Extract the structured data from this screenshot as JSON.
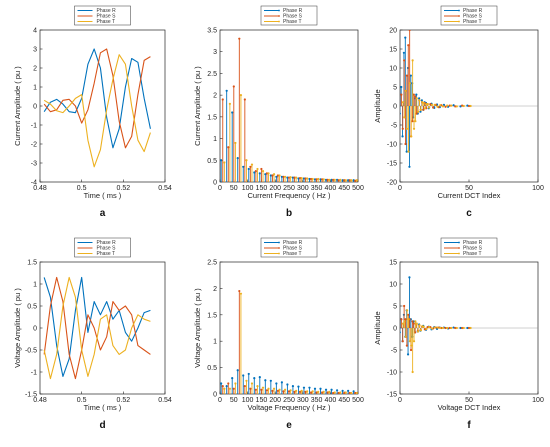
{
  "colors": {
    "R": "#0072BD",
    "S": "#D95319",
    "T": "#EDB120"
  },
  "legend": [
    "Phase R",
    "Phase S",
    "Phase T"
  ],
  "chart_data": [
    {
      "id": "a",
      "letter": "a",
      "type": "line",
      "xlabel": "Time ( ms )",
      "ylabel": "Current Amplitude ( pu )",
      "xlim": [
        0.48,
        0.54
      ],
      "ylim": [
        -4,
        4
      ],
      "xticks": [
        0.48,
        0.5,
        0.52,
        0.54
      ],
      "xticklabels": [
        "0.48",
        "0.5",
        "0.52",
        "0.54"
      ],
      "yticks": [
        -4,
        -3,
        -2,
        -1,
        0,
        1,
        2,
        3,
        4
      ],
      "yticklabels": [
        "-4",
        "-3",
        "-2",
        "-1",
        "0",
        "1",
        "2",
        "3",
        "4"
      ],
      "x": [
        0.482,
        0.485,
        0.488,
        0.491,
        0.494,
        0.497,
        0.5,
        0.503,
        0.506,
        0.509,
        0.512,
        0.515,
        0.518,
        0.521,
        0.524,
        0.527,
        0.53,
        0.533
      ],
      "series": [
        {
          "name": "Phase R",
          "values": [
            -0.3,
            0.2,
            0.35,
            0.1,
            -0.3,
            -0.35,
            0.4,
            2.2,
            3.0,
            2.0,
            -0.6,
            -2.2,
            -1.2,
            1.0,
            2.5,
            2.3,
            0.4,
            -1.2
          ]
        },
        {
          "name": "Phase S",
          "values": [
            0.1,
            -0.3,
            -0.2,
            0.3,
            0.35,
            0.0,
            -0.9,
            -0.2,
            1.2,
            2.8,
            3.0,
            1.6,
            -0.8,
            -2.2,
            -1.6,
            0.6,
            2.4,
            2.6
          ]
        },
        {
          "name": "Phase T",
          "values": [
            0.3,
            0.1,
            -0.25,
            -0.35,
            0.0,
            0.4,
            0.6,
            -1.8,
            -3.2,
            -2.3,
            -0.2,
            1.4,
            2.7,
            2.2,
            0.0,
            -1.8,
            -2.4,
            -1.4
          ]
        }
      ]
    },
    {
      "id": "b",
      "letter": "b",
      "type": "stem",
      "xlabel": "Current Frequency ( Hz )",
      "ylabel": "Current Amplitude ( pu )",
      "xlim": [
        0,
        500
      ],
      "ylim": [
        0,
        3.5
      ],
      "xticks": [
        0,
        50,
        100,
        150,
        200,
        250,
        300,
        350,
        400,
        450,
        500
      ],
      "xticklabels": [
        "0",
        "50",
        "100",
        "150",
        "200",
        "250",
        "300",
        "350",
        "400",
        "450",
        "500"
      ],
      "yticks": [
        0,
        0.5,
        1,
        1.5,
        2,
        2.5,
        3,
        3.5
      ],
      "yticklabels": [
        "0",
        "0.5",
        "1",
        "1.5",
        "2",
        "2.5",
        "3",
        "3.5"
      ],
      "x": [
        10,
        30,
        50,
        70,
        90,
        110,
        130,
        150,
        170,
        190,
        210,
        230,
        250,
        270,
        290,
        310,
        330,
        350,
        370,
        390,
        410,
        430,
        450,
        470,
        490
      ],
      "series": [
        {
          "name": "Phase R",
          "values": [
            0.5,
            2.1,
            1.6,
            0.55,
            0.35,
            0.3,
            0.22,
            0.2,
            0.18,
            0.15,
            0.12,
            0.12,
            0.1,
            0.1,
            0.08,
            0.08,
            0.07,
            0.06,
            0.06,
            0.05,
            0.05,
            0.05,
            0.04,
            0.04,
            0.04
          ]
        },
        {
          "name": "Phase S",
          "values": [
            1.9,
            0.8,
            2.2,
            3.3,
            1.9,
            0.35,
            0.25,
            0.3,
            0.2,
            0.15,
            0.15,
            0.12,
            0.1,
            0.1,
            0.09,
            0.08,
            0.07,
            0.06,
            0.06,
            0.05,
            0.05,
            0.04,
            0.04,
            0.04,
            0.03
          ]
        },
        {
          "name": "Phase T",
          "values": [
            0.45,
            1.8,
            0.9,
            2.0,
            0.5,
            0.4,
            0.3,
            0.25,
            0.2,
            0.18,
            0.15,
            0.12,
            0.11,
            0.1,
            0.09,
            0.08,
            0.07,
            0.07,
            0.06,
            0.05,
            0.05,
            0.05,
            0.04,
            0.04,
            0.04
          ]
        }
      ]
    },
    {
      "id": "c",
      "letter": "c",
      "type": "stem",
      "xlabel": "Current DCT Index",
      "ylabel": "Amplitude",
      "xlim": [
        0,
        100
      ],
      "ylim": [
        -20,
        20
      ],
      "xticks": [
        0,
        50,
        100
      ],
      "xticklabels": [
        "0",
        "50",
        "100"
      ],
      "yticks": [
        -20,
        -15,
        -10,
        -5,
        0,
        5,
        10,
        15,
        20
      ],
      "yticklabels": [
        "-20",
        "-15",
        "-10",
        "-5",
        "0",
        "5",
        "10",
        "15",
        "20"
      ],
      "x": [
        1,
        2,
        3,
        4,
        5,
        6,
        7,
        8,
        9,
        10,
        11,
        12,
        13,
        14,
        15,
        16,
        17,
        18,
        19,
        20,
        22,
        24,
        26,
        28,
        30,
        33,
        36,
        40,
        45,
        50
      ],
      "series": [
        {
          "name": "Phase R",
          "values": [
            -2,
            5,
            -8,
            14,
            18,
            -12,
            10,
            -16,
            8,
            6,
            -3,
            2,
            3,
            -2,
            2,
            -1.5,
            1.5,
            -1,
            1,
            0.8,
            -0.6,
            0.6,
            -0.5,
            0.4,
            -0.3,
            0.3,
            -0.2,
            0.2,
            -0.1,
            0.1
          ]
        },
        {
          "name": "Phase S",
          "values": [
            3,
            -6,
            12,
            -10,
            8,
            16,
            20,
            -8,
            -4,
            3,
            2.5,
            -2,
            -1.5,
            1.5,
            -1,
            1,
            -1,
            0.8,
            -0.6,
            0.5,
            0.5,
            -0.4,
            0.3,
            -0.3,
            0.2,
            -0.2,
            0.1,
            -0.1,
            0.1,
            0
          ]
        },
        {
          "name": "Phase T",
          "values": [
            1,
            -3,
            4,
            -6,
            -12,
            6,
            -8,
            12,
            -6,
            -4,
            2,
            -1.5,
            1.5,
            -1,
            1,
            0.8,
            -0.6,
            0.5,
            0.5,
            -0.4,
            0.3,
            0.3,
            -0.2,
            0.2,
            -0.1,
            0.1,
            0.1,
            -0.1,
            0,
            0
          ]
        }
      ]
    },
    {
      "id": "d",
      "letter": "d",
      "type": "line",
      "xlabel": "Time ( ms )",
      "ylabel": "Voltage Amplitude ( pu )",
      "xlim": [
        0.48,
        0.54
      ],
      "ylim": [
        -1.5,
        1.5
      ],
      "xticks": [
        0.48,
        0.5,
        0.52,
        0.54
      ],
      "xticklabels": [
        "0.48",
        "0.5",
        "0.52",
        "0.54"
      ],
      "yticks": [
        -1.5,
        -1,
        -0.5,
        0,
        0.5,
        1,
        1.5
      ],
      "yticklabels": [
        "-1.5",
        "-1",
        "-0.5",
        "0",
        "0.5",
        "1",
        "1.5"
      ],
      "x": [
        0.482,
        0.485,
        0.488,
        0.491,
        0.494,
        0.497,
        0.5,
        0.503,
        0.506,
        0.509,
        0.512,
        0.515,
        0.518,
        0.521,
        0.524,
        0.527,
        0.53,
        0.533
      ],
      "series": [
        {
          "name": "Phase R",
          "values": [
            1.15,
            0.7,
            -0.4,
            -1.1,
            -0.7,
            0.4,
            1.15,
            -0.1,
            0.6,
            0.3,
            0.6,
            0.2,
            0.4,
            -0.1,
            -0.3,
            0.0,
            0.35,
            0.4
          ]
        },
        {
          "name": "Phase S",
          "values": [
            -0.6,
            0.5,
            1.15,
            0.6,
            -0.6,
            -1.15,
            -0.5,
            0.3,
            0.0,
            -0.5,
            -0.2,
            0.6,
            0.4,
            0.5,
            0.3,
            -0.4,
            -0.5,
            -0.6
          ]
        },
        {
          "name": "Phase T",
          "values": [
            -0.5,
            -1.15,
            -0.6,
            0.5,
            1.15,
            0.7,
            -0.5,
            -1.1,
            -0.6,
            0.2,
            0.3,
            -0.4,
            -0.6,
            -0.5,
            0.0,
            0.3,
            0.2,
            0.15
          ]
        }
      ]
    },
    {
      "id": "e",
      "letter": "e",
      "type": "stem",
      "xlabel": "Voltage Frequency ( Hz )",
      "ylabel": "Voltage Amplitude ( pu )",
      "xlim": [
        0,
        500
      ],
      "ylim": [
        0,
        2.5
      ],
      "xticks": [
        0,
        50,
        100,
        150,
        200,
        250,
        300,
        350,
        400,
        450,
        500
      ],
      "xticklabels": [
        "0",
        "50",
        "100",
        "150",
        "200",
        "250",
        "300",
        "350",
        "400",
        "450",
        "500"
      ],
      "yticks": [
        0,
        0.5,
        1,
        1.5,
        2,
        2.5
      ],
      "yticklabels": [
        "0",
        "0.5",
        "1",
        "1.5",
        "2",
        "2.5"
      ],
      "x": [
        10,
        30,
        50,
        70,
        90,
        110,
        130,
        150,
        170,
        190,
        210,
        230,
        250,
        270,
        290,
        310,
        330,
        350,
        370,
        390,
        410,
        430,
        450,
        470,
        490
      ],
      "series": [
        {
          "name": "Phase R",
          "values": [
            0.2,
            0.15,
            0.3,
            0.45,
            0.35,
            0.38,
            0.3,
            0.32,
            0.26,
            0.25,
            0.2,
            0.22,
            0.18,
            0.15,
            0.14,
            0.12,
            0.12,
            0.1,
            0.1,
            0.08,
            0.08,
            0.07,
            0.06,
            0.06,
            0.05
          ]
        },
        {
          "name": "Phase S",
          "values": [
            0.15,
            0.2,
            0.1,
            1.95,
            0.15,
            0.1,
            0.08,
            0.08,
            0.07,
            0.06,
            0.06,
            0.05,
            0.05,
            0.04,
            0.04,
            0.04,
            0.03,
            0.03,
            0.03,
            0.03,
            0.02,
            0.02,
            0.02,
            0.02,
            0.02
          ]
        },
        {
          "name": "Phase T",
          "values": [
            0.1,
            0.1,
            0.2,
            1.9,
            0.25,
            0.2,
            0.15,
            0.12,
            0.1,
            0.1,
            0.08,
            0.08,
            0.07,
            0.06,
            0.06,
            0.05,
            0.05,
            0.04,
            0.04,
            0.04,
            0.03,
            0.03,
            0.03,
            0.02,
            0.02
          ]
        }
      ]
    },
    {
      "id": "f",
      "letter": "f",
      "type": "stem",
      "xlabel": "Voltage DCT Index",
      "ylabel": "Amplitude",
      "xlim": [
        0,
        100
      ],
      "ylim": [
        -15,
        15
      ],
      "xticks": [
        0,
        50,
        100
      ],
      "xticklabels": [
        "0",
        "50",
        "100"
      ],
      "yticks": [
        -15,
        -10,
        -5,
        0,
        5,
        10,
        15
      ],
      "yticklabels": [
        "-15",
        "-10",
        "-5",
        "0",
        "5",
        "10",
        "15"
      ],
      "x": [
        1,
        2,
        3,
        4,
        5,
        6,
        7,
        8,
        9,
        10,
        11,
        12,
        13,
        14,
        15,
        16,
        18,
        20,
        22,
        24,
        26,
        28,
        30,
        33,
        36,
        40,
        45,
        50
      ],
      "series": [
        {
          "name": "Phase R",
          "values": [
            -1,
            2,
            -3,
            3,
            -2,
            4,
            -6,
            11.5,
            2,
            -2,
            1.5,
            -1,
            1,
            -0.8,
            0.8,
            -0.6,
            0.5,
            -0.4,
            0.3,
            -0.3,
            0.2,
            -0.2,
            0.1,
            0.1,
            -0.1,
            0.1,
            0,
            0
          ]
        },
        {
          "name": "Phase S",
          "values": [
            2,
            -3,
            5,
            2,
            -4,
            3,
            2,
            -5,
            1.5,
            1,
            -1,
            0.8,
            -0.6,
            0.5,
            -0.4,
            0.3,
            -0.3,
            0.2,
            0.2,
            -0.1,
            0.1,
            0.1,
            0,
            0,
            0,
            0,
            0,
            0
          ]
        },
        {
          "name": "Phase T",
          "values": [
            1,
            1.5,
            -2,
            4,
            2,
            -3,
            -4,
            -10,
            -3,
            1.5,
            1,
            -0.8,
            0.6,
            -0.5,
            0.4,
            0.3,
            -0.2,
            0.2,
            -0.1,
            0.1,
            0.1,
            0,
            0,
            0,
            0,
            0,
            0,
            0
          ]
        }
      ]
    }
  ]
}
